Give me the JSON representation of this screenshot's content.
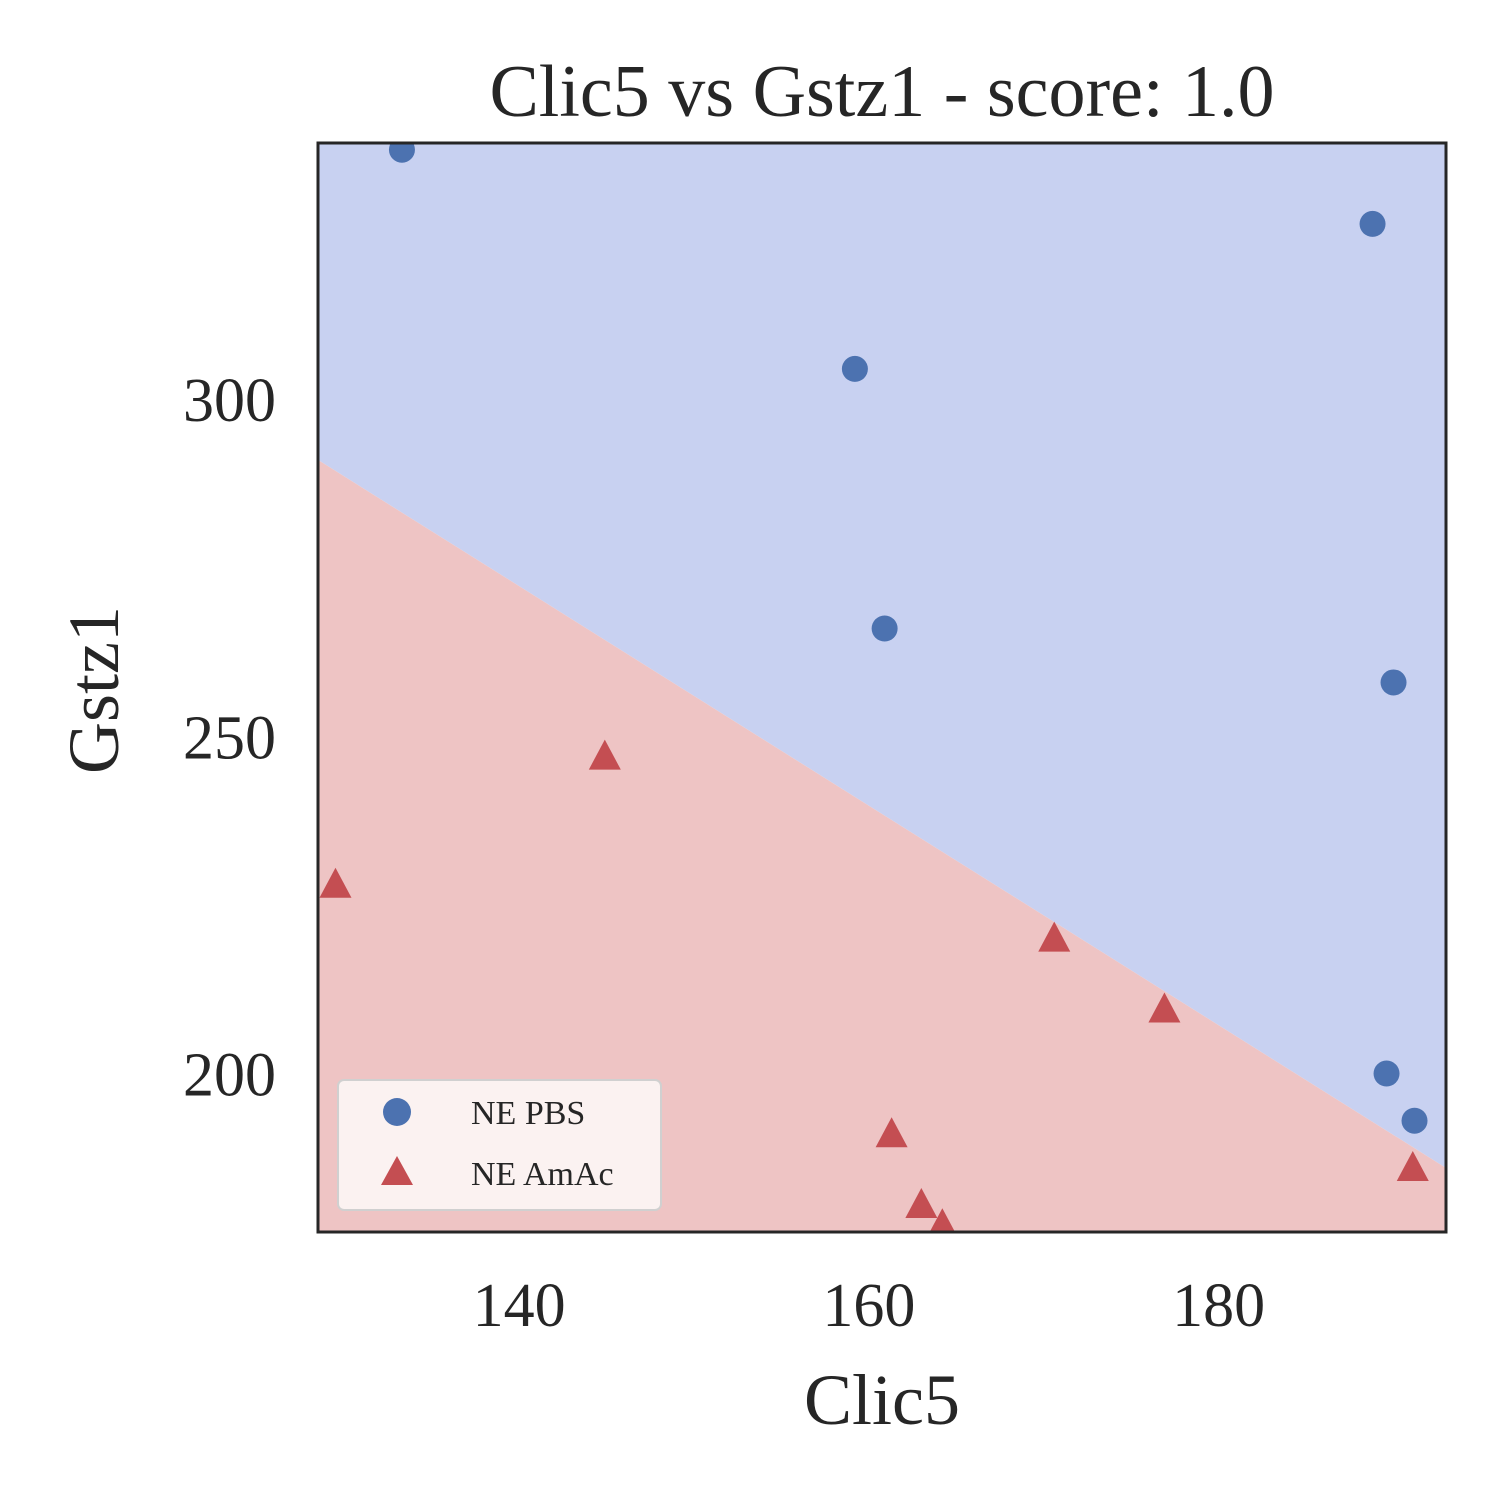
{
  "chart_data": {
    "type": "scatter",
    "title": "Clic5 vs Gstz1 - score: 1.0",
    "xlabel": "Clic5",
    "ylabel": "Gstz1",
    "xlim": [
      128.5,
      193.0
    ],
    "ylim": [
      176.5,
      338.0
    ],
    "xticks": [
      140,
      160,
      180
    ],
    "yticks": [
      200,
      250,
      300
    ],
    "grid": false,
    "legend_position": "lower-left",
    "decision_boundary": {
      "points": [
        [
          128.5,
          291.0
        ],
        [
          193.0,
          186.0
        ]
      ],
      "above_class": "NE PBS",
      "below_class": "NE AmAc"
    },
    "colors": {
      "NE PBS": "#4c72b0",
      "NE AmAc": "#c44e52",
      "region_above": "#c8d1f1",
      "region_below": "#eec4c4"
    },
    "series": [
      {
        "name": "NE PBS",
        "marker": "circle",
        "x": [
          133.3,
          159.2,
          160.9,
          188.8,
          190.0,
          189.6,
          191.2
        ],
        "y": [
          337.0,
          304.5,
          266.0,
          326.0,
          258.0,
          200.0,
          193.0
        ]
      },
      {
        "name": "NE AmAc",
        "marker": "triangle",
        "x": [
          129.5,
          144.9,
          161.3,
          170.6,
          176.9,
          163.0,
          164.2,
          191.1
        ],
        "y": [
          228.0,
          247.0,
          191.0,
          220.0,
          209.5,
          180.5,
          177.5,
          186.0
        ]
      }
    ]
  }
}
